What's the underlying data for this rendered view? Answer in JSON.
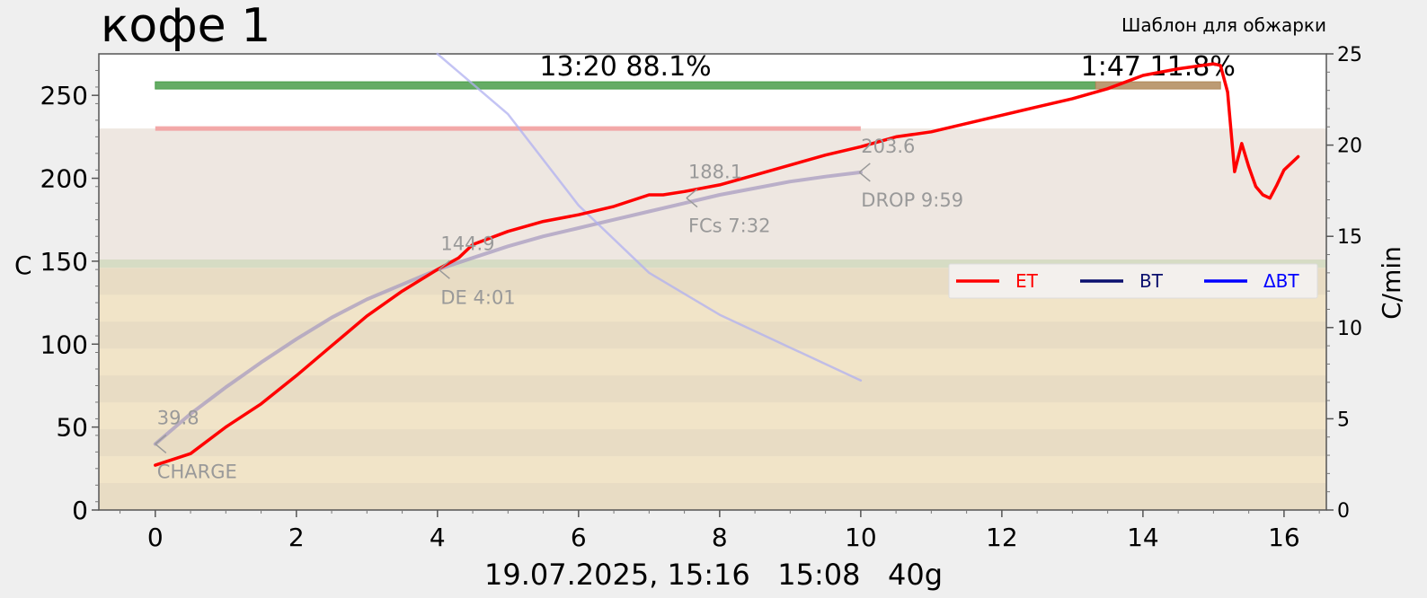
{
  "chart_data": {
    "type": "line",
    "title": "кофе 1",
    "subtitle": "Шаблон для обжарки",
    "footer": "19.07.2025, 15:16   15:08   40g",
    "xlabel": "",
    "ylabel": "C",
    "y2label": "C/min",
    "xlim": [
      -0.8,
      16.6
    ],
    "ylim": [
      0,
      275
    ],
    "y2lim": [
      0,
      25
    ],
    "x_ticks": [
      "0",
      "2",
      "4",
      "6",
      "8",
      "10",
      "12",
      "14",
      "16"
    ],
    "y_ticks": [
      "0",
      "50",
      "100",
      "150",
      "200",
      "250"
    ],
    "y2_ticks": [
      "0",
      "5",
      "10",
      "15",
      "20",
      "25"
    ],
    "phases": [
      {
        "label": "13:20  88.1%",
        "x_start": 0,
        "x_end": 13.33,
        "color": "#4a9e4a"
      },
      {
        "label": "1:47  11.8%",
        "x_start": 13.33,
        "x_end": 15.1,
        "color": "#b08a5a"
      }
    ],
    "reference_bar": {
      "x_start": 0,
      "x_end": 10,
      "y": 230,
      "color": "#f2a0a0"
    },
    "series": [
      {
        "name": "ET",
        "color": "#ff0000",
        "x": [
          0,
          0.5,
          1,
          1.5,
          2,
          2.5,
          3,
          3.5,
          4,
          4.3,
          4.5,
          5,
          5.5,
          6,
          6.5,
          7,
          7.2,
          7.5,
          8,
          8.5,
          9,
          9.5,
          10,
          10.5,
          11,
          11.5,
          12,
          12.5,
          13,
          13.5,
          14,
          14.5,
          15,
          15.1,
          15.2,
          15.3,
          15.4,
          15.5,
          15.6,
          15.7,
          15.8,
          15.9,
          16.0,
          16.2
        ],
        "values": [
          27,
          34,
          50,
          64,
          81,
          99,
          117,
          132,
          145,
          152,
          160,
          168,
          174,
          178,
          183,
          190,
          190,
          192,
          196,
          202,
          208,
          214,
          219,
          225,
          228,
          233,
          238,
          243,
          248,
          254,
          262,
          266,
          269,
          268,
          252,
          204,
          221,
          207,
          195,
          190,
          188,
          196,
          205,
          213
        ]
      },
      {
        "name": "BT",
        "color": "#0a0f6e",
        "x": [],
        "values": []
      },
      {
        "name": "ΔBT",
        "color": "#0000ff",
        "x": [],
        "values": []
      }
    ],
    "background_profiles": [
      {
        "kind": "BT",
        "axis": "left",
        "color": "#a89cc0",
        "x": [
          0,
          0.5,
          1,
          1.5,
          2,
          2.5,
          3,
          3.5,
          4,
          4.5,
          5,
          5.5,
          6,
          6.5,
          7,
          7.5,
          8,
          8.5,
          9,
          9.5,
          10
        ],
        "values": [
          39.8,
          58,
          74,
          89,
          103,
          116,
          127,
          136,
          144.9,
          152,
          159,
          165,
          170,
          175,
          180,
          185,
          190,
          194,
          198,
          201,
          203.6
        ]
      },
      {
        "kind": "ΔBT",
        "axis": "right",
        "color": "#b0b0f0",
        "x": [
          4,
          5,
          6,
          7,
          8,
          9,
          10
        ],
        "values": [
          25,
          21.7,
          16.7,
          13,
          10.7,
          8.9,
          7.1
        ]
      }
    ],
    "annotations": [
      {
        "label": "39.8",
        "x": 0,
        "y": 39.8,
        "anchor": "top"
      },
      {
        "label": "CHARGE",
        "x": 0,
        "y": 39.8,
        "anchor": "bottom"
      },
      {
        "label": "144.9",
        "x": 4.02,
        "y": 144.9,
        "anchor": "top"
      },
      {
        "label": "DE 4:01",
        "x": 4.02,
        "y": 144.9,
        "anchor": "bottom"
      },
      {
        "label": "188.1",
        "x": 7.53,
        "y": 188.1,
        "anchor": "top"
      },
      {
        "label": "FCs 7:32",
        "x": 7.53,
        "y": 188.1,
        "anchor": "bottom"
      },
      {
        "label": "203.6",
        "x": 9.98,
        "y": 203.6,
        "anchor": "top"
      },
      {
        "label": "DROP 9:59",
        "x": 9.98,
        "y": 203.6,
        "anchor": "bottom"
      }
    ],
    "legend": {
      "position": "right",
      "entries": [
        {
          "label": "ET",
          "color": "#ff0000"
        },
        {
          "label": "BT",
          "color": "#0a0f6e"
        },
        {
          "label": "ΔBT",
          "color": "#0000ff"
        }
      ]
    },
    "grid": false
  }
}
